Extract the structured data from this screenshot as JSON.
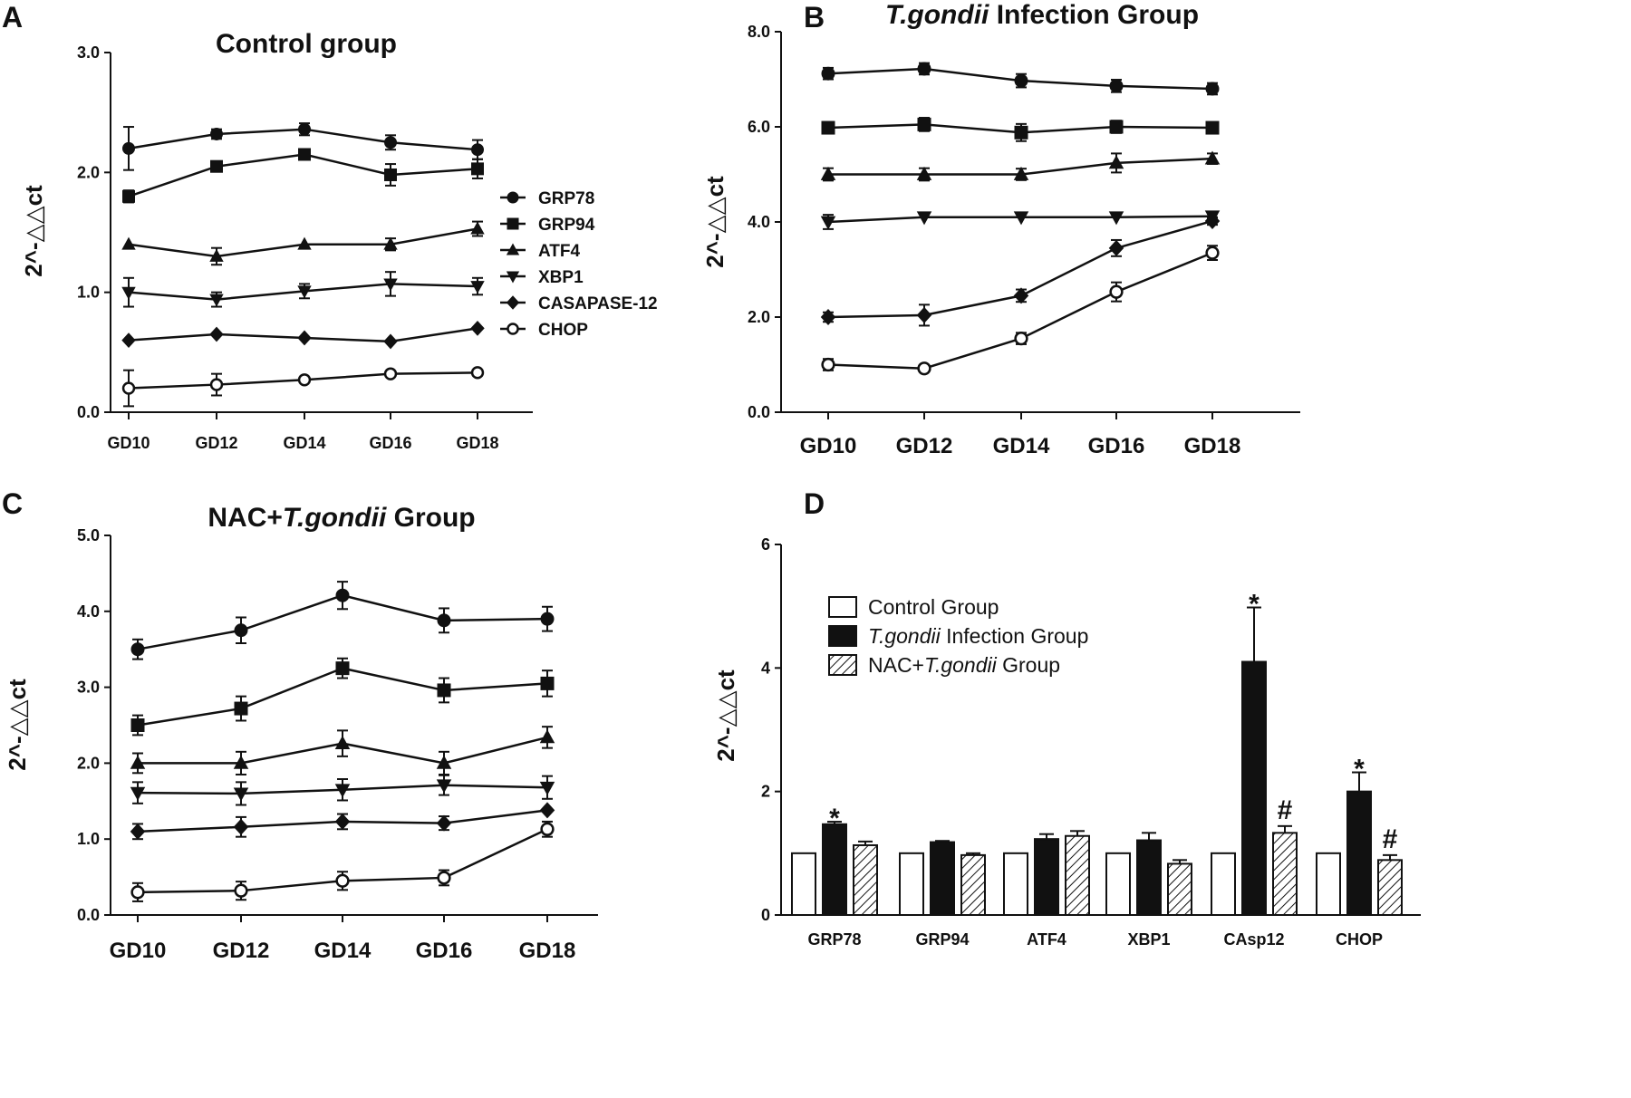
{
  "chart_data": [
    {
      "panel": "A",
      "type": "line",
      "title": "Control group",
      "title_italic": "",
      "title_suffix": "",
      "ylabel": "2^-△△ct",
      "ylim": [
        0,
        3
      ],
      "yticks": [
        "0.0",
        "1.0",
        "2.0",
        "3.0"
      ],
      "yticks_values": [
        0,
        1,
        2,
        3
      ],
      "categories": [
        "GD10",
        "GD12",
        "GD14",
        "GD16",
        "GD18"
      ],
      "legend_position": "right",
      "series": [
        {
          "name": "GRP78",
          "marker": "circle",
          "values": [
            2.2,
            2.32,
            2.36,
            2.25,
            2.19
          ],
          "errors": [
            0.18,
            0.04,
            0.05,
            0.06,
            0.08
          ]
        },
        {
          "name": "GRP94",
          "marker": "square",
          "values": [
            1.8,
            2.05,
            2.15,
            1.98,
            2.03
          ],
          "errors": [
            0.05,
            0.02,
            0.04,
            0.09,
            0.08
          ]
        },
        {
          "name": "ATF4",
          "marker": "triangle",
          "values": [
            1.4,
            1.3,
            1.4,
            1.4,
            1.53
          ],
          "errors": [
            0.0,
            0.07,
            0.0,
            0.05,
            0.06
          ]
        },
        {
          "name": "XBP1",
          "marker": "triangle-down",
          "values": [
            1.0,
            0.94,
            1.01,
            1.07,
            1.05
          ],
          "errors": [
            0.12,
            0.06,
            0.06,
            0.1,
            0.07
          ]
        },
        {
          "name": "CASAPASE-12",
          "marker": "diamond",
          "values": [
            0.6,
            0.65,
            0.62,
            0.59,
            0.7
          ],
          "errors": [
            0.0,
            0.0,
            0.0,
            0.0,
            0.0
          ]
        },
        {
          "name": "CHOP",
          "marker": "open-circle",
          "values": [
            0.2,
            0.23,
            0.27,
            0.32,
            0.33
          ],
          "errors": [
            0.15,
            0.09,
            0.0,
            0.0,
            0.0
          ]
        }
      ]
    },
    {
      "panel": "B",
      "type": "line",
      "title": "",
      "title_italic": "T.gondii",
      "title_suffix": " Infection Group",
      "ylabel": "2^-△△ct",
      "ylim": [
        0,
        8
      ],
      "yticks": [
        "0.0",
        "2.0",
        "4.0",
        "6.0",
        "8.0"
      ],
      "yticks_values": [
        0,
        2,
        4,
        6,
        8
      ],
      "categories": [
        "GD10",
        "GD12",
        "GD14",
        "GD16",
        "GD18"
      ],
      "series": [
        {
          "name": "GRP78",
          "marker": "circle",
          "values": [
            7.12,
            7.22,
            6.97,
            6.86,
            6.8
          ],
          "errors": [
            0.12,
            0.12,
            0.14,
            0.13,
            0.12
          ]
        },
        {
          "name": "GRP94",
          "marker": "square",
          "values": [
            5.98,
            6.05,
            5.88,
            6.0,
            5.98
          ],
          "errors": [
            0.12,
            0.14,
            0.18,
            0.13,
            0.1
          ]
        },
        {
          "name": "ATF4",
          "marker": "triangle",
          "values": [
            5.0,
            5.0,
            5.0,
            5.24,
            5.33
          ],
          "errors": [
            0.13,
            0.13,
            0.12,
            0.2,
            0.11
          ]
        },
        {
          "name": "XBP1",
          "marker": "triangle-down",
          "values": [
            4.0,
            4.1,
            4.1,
            4.1,
            4.12
          ],
          "errors": [
            0.15,
            0.0,
            0.0,
            0.0,
            0.05
          ]
        },
        {
          "name": "CASAPASE-12",
          "marker": "diamond",
          "values": [
            2.0,
            2.04,
            2.45,
            3.45,
            4.02
          ],
          "errors": [
            0.1,
            0.22,
            0.13,
            0.17,
            0.08
          ]
        },
        {
          "name": "CHOP",
          "marker": "open-circle",
          "values": [
            1.0,
            0.92,
            1.55,
            2.53,
            3.35
          ],
          "errors": [
            0.12,
            0.0,
            0.12,
            0.2,
            0.15
          ]
        }
      ]
    },
    {
      "panel": "C",
      "type": "line",
      "title": "NAC+",
      "title_italic": "T.gondii",
      "title_suffix": " Group",
      "ylabel": "2^-△△ct",
      "ylim": [
        0,
        5
      ],
      "yticks": [
        "0.0",
        "1.0",
        "2.0",
        "3.0",
        "4.0",
        "5.0"
      ],
      "yticks_values": [
        0,
        1,
        2,
        3,
        4,
        5
      ],
      "categories": [
        "GD10",
        "GD12",
        "GD14",
        "GD16",
        "GD18"
      ],
      "series": [
        {
          "name": "GRP78",
          "marker": "circle",
          "values": [
            3.5,
            3.75,
            4.21,
            3.88,
            3.9
          ],
          "errors": [
            0.13,
            0.17,
            0.18,
            0.16,
            0.16
          ]
        },
        {
          "name": "GRP94",
          "marker": "square",
          "values": [
            2.5,
            2.72,
            3.25,
            2.96,
            3.05
          ],
          "errors": [
            0.13,
            0.16,
            0.13,
            0.16,
            0.17
          ]
        },
        {
          "name": "ATF4",
          "marker": "triangle",
          "values": [
            2.0,
            2.0,
            2.26,
            2.0,
            2.34
          ],
          "errors": [
            0.13,
            0.15,
            0.17,
            0.15,
            0.14
          ]
        },
        {
          "name": "XBP1",
          "marker": "triangle-down",
          "values": [
            1.61,
            1.6,
            1.65,
            1.71,
            1.68
          ],
          "errors": [
            0.14,
            0.15,
            0.14,
            0.13,
            0.15
          ]
        },
        {
          "name": "CASAPASE-12",
          "marker": "diamond",
          "values": [
            1.1,
            1.16,
            1.23,
            1.21,
            1.38
          ],
          "errors": [
            0.1,
            0.13,
            0.1,
            0.09,
            0.0
          ]
        },
        {
          "name": "CHOP",
          "marker": "open-circle",
          "values": [
            0.3,
            0.32,
            0.45,
            0.49,
            1.13
          ],
          "errors": [
            0.12,
            0.12,
            0.12,
            0.1,
            0.1
          ]
        }
      ]
    },
    {
      "panel": "D",
      "type": "bar",
      "title": "",
      "ylabel": "2^-△△ct",
      "ylim": [
        0,
        6
      ],
      "yticks": [
        "0",
        "2",
        "4",
        "6"
      ],
      "yticks_values": [
        0,
        2,
        4,
        6
      ],
      "categories": [
        "GRP78",
        "GRP94",
        "ATF4",
        "XBP1",
        "CAsp12",
        "CHOP"
      ],
      "legend_position": "top-left",
      "series": [
        {
          "name": "Control Group",
          "name_italic": "",
          "name_suffix": "",
          "fill": "open",
          "values": [
            1.0,
            1.0,
            1.0,
            1.0,
            1.0,
            1.0
          ],
          "errors": [
            0,
            0,
            0,
            0,
            0,
            0
          ],
          "marks": [
            "",
            "",
            "",
            "",
            "",
            ""
          ]
        },
        {
          "name": "",
          "name_italic": "T.gondii",
          "name_suffix": " Infection Group",
          "fill": "solid",
          "values": [
            1.47,
            1.18,
            1.23,
            1.21,
            4.1,
            2.0
          ],
          "errors": [
            0.04,
            0.02,
            0.08,
            0.12,
            0.88,
            0.31
          ],
          "marks": [
            "*",
            "",
            "",
            "",
            "*",
            "*"
          ]
        },
        {
          "name": "NAC+",
          "name_italic": "T.gondii",
          "name_suffix": " Group",
          "fill": "hatched",
          "values": [
            1.13,
            0.97,
            1.28,
            0.83,
            1.33,
            0.89
          ],
          "errors": [
            0.06,
            0.03,
            0.08,
            0.06,
            0.11,
            0.08
          ],
          "marks": [
            "",
            "",
            "",
            "",
            "#",
            "#"
          ]
        }
      ]
    }
  ]
}
